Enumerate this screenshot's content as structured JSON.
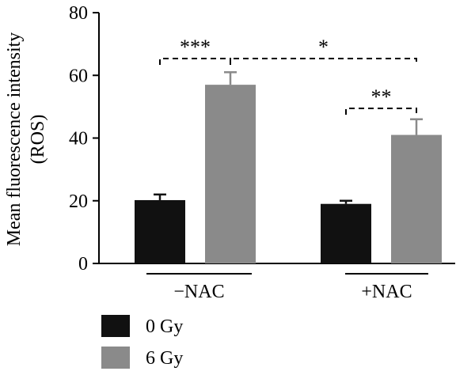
{
  "chart_data": {
    "type": "bar",
    "title": "",
    "xlabel": "",
    "ylabel": [
      "Mean fluorescence intensity",
      "(ROS)"
    ],
    "ylim": [
      0,
      80
    ],
    "yticks": [
      "0",
      "20",
      "40",
      "60",
      "80"
    ],
    "categories": [
      "−NAC",
      "+NAC"
    ],
    "series": [
      {
        "name": "0 Gy",
        "color": "#111111",
        "values": [
          20.2,
          19.0
        ],
        "errors": [
          1.8,
          1.0
        ]
      },
      {
        "name": "6 Gy",
        "color": "#8a8a8a",
        "values": [
          57.0,
          41.0
        ],
        "errors": [
          4.0,
          5.0
        ]
      }
    ],
    "significance": [
      {
        "label": "***",
        "from": {
          "category": 0,
          "series": 0
        },
        "to": {
          "category": 0,
          "series": 1
        }
      },
      {
        "label": "*",
        "from": {
          "category": 0,
          "series": 1
        },
        "to": {
          "category": 1,
          "series": 1
        }
      },
      {
        "label": "**",
        "from": {
          "category": 1,
          "series": 0
        },
        "to": {
          "category": 1,
          "series": 1
        }
      }
    ],
    "legend_position": "bottom-left",
    "grid": false
  }
}
